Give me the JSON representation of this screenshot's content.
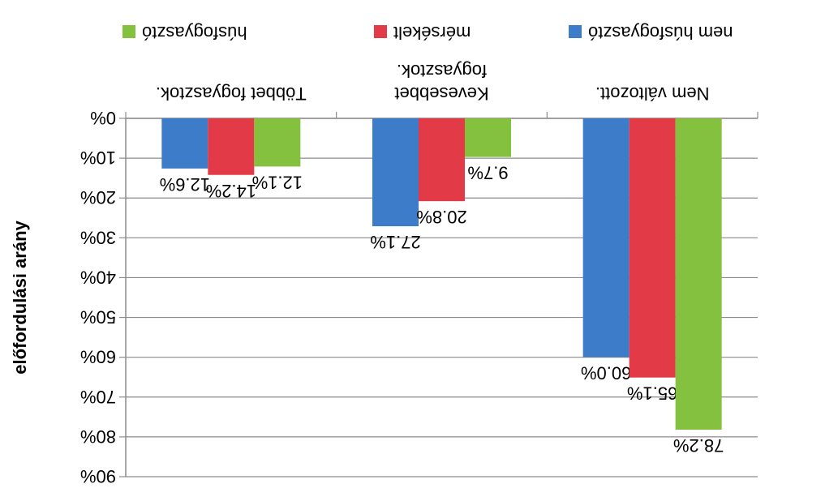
{
  "chart_data": {
    "type": "bar",
    "orientation": "vertical",
    "rendered_rotated_180": true,
    "ylabel": "előfordulási arány",
    "categories": [
      "Többet fogyasztok.",
      "Kevesebbet fogyasztok.",
      "Nem változott."
    ],
    "category_lines": [
      [
        "Többet fogyasztok."
      ],
      [
        "Kevesebbet",
        "fogyasztok."
      ],
      [
        "Nem változott."
      ]
    ],
    "series": [
      {
        "name": "nem húsfogyasztó",
        "color": "#3d7cc9",
        "values": [
          12.6,
          27.1,
          60.0
        ],
        "labels": [
          "12.6%",
          "27.1%",
          "60.0%"
        ]
      },
      {
        "name": "mérsékelt",
        "color": "#e23a46",
        "values": [
          14.2,
          20.8,
          65.1
        ],
        "labels": [
          "14.2%",
          "20.8%",
          "65.1%"
        ]
      },
      {
        "name": "húsfogyasztó",
        "color": "#83c13f",
        "values": [
          12.1,
          9.7,
          78.2
        ],
        "labels": [
          "12.1%",
          "9.7%",
          "78.2%"
        ]
      }
    ],
    "yticks": [
      "0%",
      "10%",
      "20%",
      "30%",
      "40%",
      "50%",
      "60%",
      "70%",
      "80%",
      "90%"
    ],
    "ylim": [
      0,
      90
    ],
    "grid": true,
    "legend": "top"
  }
}
